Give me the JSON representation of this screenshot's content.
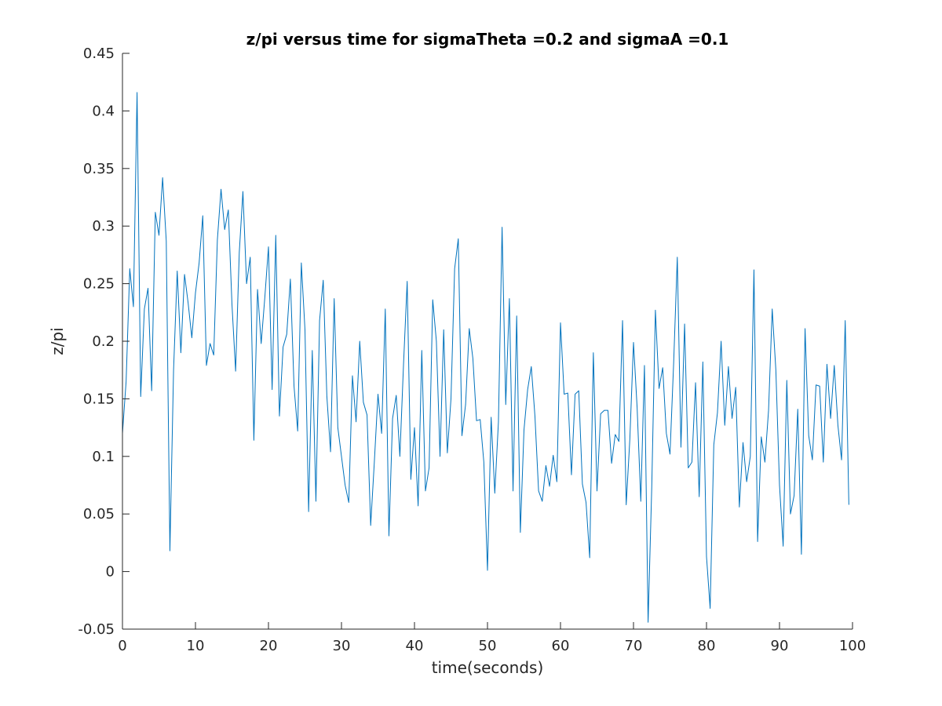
{
  "chart_data": {
    "type": "line",
    "title": "z/pi versus time for sigmaTheta =0.2 and sigmaA =0.1",
    "xlabel": "time(seconds)",
    "ylabel": "z/pi",
    "xlim": [
      0,
      100
    ],
    "ylim": [
      -0.05,
      0.45
    ],
    "xticks": [
      0,
      10,
      20,
      30,
      40,
      50,
      60,
      70,
      80,
      90,
      100
    ],
    "xtick_labels": [
      "0",
      "10",
      "20",
      "30",
      "40",
      "50",
      "60",
      "70",
      "80",
      "90",
      "100"
    ],
    "yticks": [
      -0.05,
      0,
      0.05,
      0.1,
      0.15,
      0.2,
      0.25,
      0.3,
      0.35,
      0.4,
      0.45
    ],
    "ytick_labels": [
      "-0.05",
      "0",
      "0.05",
      "0.1",
      "0.15",
      "0.2",
      "0.25",
      "0.3",
      "0.35",
      "0.4",
      "0.45"
    ],
    "grid": false,
    "legend": "none",
    "series": [
      {
        "color": "#0072BD",
        "x": [
          0,
          0.5,
          1,
          1.5,
          2,
          2.5,
          3,
          3.5,
          4,
          4.5,
          5,
          5.5,
          6,
          6.5,
          7,
          7.5,
          8,
          8.5,
          9,
          9.5,
          10,
          10.5,
          11,
          11.5,
          12,
          12.5,
          13,
          13.5,
          14,
          14.5,
          15,
          15.5,
          16,
          16.5,
          17,
          17.5,
          18,
          18.5,
          19,
          19.5,
          20,
          20.5,
          21,
          21.5,
          22,
          22.5,
          23,
          23.5,
          24,
          24.5,
          25,
          25.5,
          26,
          26.5,
          27,
          27.5,
          28,
          28.5,
          29,
          29.5,
          30,
          30.5,
          31,
          31.5,
          32,
          32.5,
          33,
          33.5,
          34,
          34.5,
          35,
          35.5,
          36,
          36.5,
          37,
          37.5,
          38,
          38.5,
          39,
          39.5,
          40,
          40.5,
          41,
          41.5,
          42,
          42.5,
          43,
          43.5,
          44,
          44.5,
          45,
          45.5,
          46,
          46.5,
          47,
          47.5,
          48,
          48.5,
          49,
          49.5,
          50,
          50.5,
          51,
          51.5,
          52,
          52.5,
          53,
          53.5,
          54,
          54.5,
          55,
          55.5,
          56,
          56.5,
          57,
          57.5,
          58,
          58.5,
          59,
          59.5,
          60,
          60.5,
          61,
          61.5,
          62,
          62.5,
          63,
          63.5,
          64,
          64.5,
          65,
          65.5,
          66,
          66.5,
          67,
          67.5,
          68,
          68.5,
          69,
          69.5,
          70,
          70.5,
          71,
          71.5,
          72,
          72.5,
          73,
          73.5,
          74,
          74.5,
          75,
          75.5,
          76,
          76.5,
          77,
          77.5,
          78,
          78.5,
          79,
          79.5,
          80,
          80.5,
          81,
          81.5,
          82,
          82.5,
          83,
          83.5,
          84,
          84.5,
          85,
          85.5,
          86,
          86.5,
          87,
          87.5,
          88,
          88.5,
          89,
          89.5,
          90,
          90.5,
          91,
          91.5,
          92,
          92.5,
          93,
          93.5,
          94,
          94.5,
          95,
          95.5,
          96,
          96.5,
          97,
          97.5,
          98,
          98.5,
          99,
          99.5
        ],
        "y": [
          0.12,
          0.165,
          0.263,
          0.23,
          0.416,
          0.152,
          0.228,
          0.246,
          0.157,
          0.312,
          0.292,
          0.342,
          0.287,
          0.018,
          0.175,
          0.261,
          0.19,
          0.258,
          0.233,
          0.203,
          0.242,
          0.268,
          0.309,
          0.179,
          0.198,
          0.188,
          0.288,
          0.332,
          0.297,
          0.314,
          0.232,
          0.174,
          0.277,
          0.33,
          0.25,
          0.273,
          0.114,
          0.245,
          0.198,
          0.238,
          0.282,
          0.158,
          0.292,
          0.135,
          0.195,
          0.206,
          0.254,
          0.161,
          0.122,
          0.268,
          0.21,
          0.052,
          0.192,
          0.061,
          0.218,
          0.253,
          0.152,
          0.104,
          0.237,
          0.125,
          0.1,
          0.075,
          0.06,
          0.17,
          0.13,
          0.2,
          0.147,
          0.136,
          0.04,
          0.095,
          0.154,
          0.12,
          0.228,
          0.031,
          0.133,
          0.153,
          0.1,
          0.18,
          0.252,
          0.08,
          0.125,
          0.057,
          0.192,
          0.07,
          0.09,
          0.236,
          0.2,
          0.1,
          0.21,
          0.103,
          0.15,
          0.263,
          0.289,
          0.118,
          0.145,
          0.211,
          0.185,
          0.131,
          0.132,
          0.095,
          0.001,
          0.134,
          0.068,
          0.13,
          0.299,
          0.145,
          0.237,
          0.07,
          0.222,
          0.034,
          0.123,
          0.158,
          0.178,
          0.135,
          0.07,
          0.061,
          0.092,
          0.074,
          0.101,
          0.078,
          0.216,
          0.154,
          0.155,
          0.084,
          0.154,
          0.157,
          0.076,
          0.06,
          0.012,
          0.19,
          0.07,
          0.137,
          0.14,
          0.14,
          0.094,
          0.119,
          0.113,
          0.218,
          0.058,
          0.115,
          0.199,
          0.142,
          0.061,
          0.179,
          -0.044,
          0.073,
          0.227,
          0.159,
          0.177,
          0.12,
          0.102,
          0.181,
          0.273,
          0.108,
          0.215,
          0.09,
          0.095,
          0.164,
          0.065,
          0.182,
          0.013,
          -0.032,
          0.11,
          0.138,
          0.2,
          0.127,
          0.178,
          0.133,
          0.16,
          0.056,
          0.112,
          0.078,
          0.1,
          0.262,
          0.026,
          0.117,
          0.095,
          0.14,
          0.228,
          0.175,
          0.075,
          0.022,
          0.166,
          0.05,
          0.066,
          0.141,
          0.015,
          0.211,
          0.118,
          0.097,
          0.162,
          0.161,
          0.095,
          0.18,
          0.133,
          0.179,
          0.127,
          0.097,
          0.218,
          0.058
        ]
      }
    ]
  }
}
